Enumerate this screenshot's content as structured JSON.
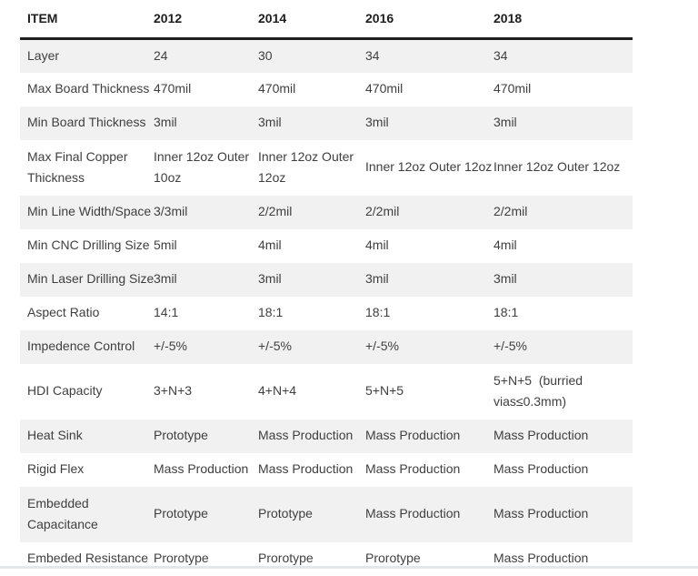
{
  "table": {
    "columns": [
      "ITEM",
      "2012",
      "2014",
      "2016",
      "2018"
    ],
    "rows": [
      {
        "label": "Layer",
        "values": [
          "24",
          "30",
          "34",
          "34"
        ]
      },
      {
        "label": "Max Board Thickness",
        "values": [
          "470mil",
          "470mil",
          "470mil",
          "470mil"
        ]
      },
      {
        "label": "Min Board Thickness",
        "values": [
          "3mil",
          "3mil",
          "3mil",
          "3mil"
        ]
      },
      {
        "label": "Max Final Copper\nThickness",
        "values": [
          "Inner 12oz Outer\n10oz",
          "Inner 12oz Outer\n12oz",
          "Inner 12oz Outer 12oz",
          "Inner 12oz Outer 12oz"
        ]
      },
      {
        "label": "Min Line Width/Space",
        "values": [
          "3/3mil",
          "2/2mil",
          "2/2mil",
          "2/2mil"
        ]
      },
      {
        "label": "Min CNC Drilling Size",
        "values": [
          "5mil",
          "4mil",
          "4mil",
          "4mil"
        ]
      },
      {
        "label": "Min Laser Drilling Size",
        "values": [
          "3mil",
          "3mil",
          "3mil",
          "3mil"
        ]
      },
      {
        "label": "Aspect Ratio",
        "values": [
          "14:1",
          "18:1",
          "18:1",
          "18:1"
        ]
      },
      {
        "label": "Impedence Control",
        "values": [
          "+/-5%",
          "+/-5%",
          "+/-5%",
          "+/-5%"
        ]
      },
      {
        "label": "HDI Capacity",
        "values": [
          "3+N+3",
          "4+N+4",
          "5+N+5",
          "5+N+5  (burried\nvias≤0.3mm)"
        ]
      },
      {
        "label": "Heat Sink",
        "values": [
          "Prototype",
          "Mass Production",
          "Mass Production",
          "Mass Production"
        ]
      },
      {
        "label": "Rigid Flex",
        "values": [
          "Mass Production",
          "Mass Production",
          "Mass Production",
          "Mass Production"
        ]
      },
      {
        "label": "Embedded\nCapacitance",
        "values": [
          "Prototype",
          "Prototype",
          "Mass Production",
          "Mass Production"
        ]
      },
      {
        "label": "Embeded Resistance",
        "values": [
          "Prorotype",
          "Prorotype",
          "Prorotype",
          "Mass Production"
        ]
      }
    ]
  },
  "colors": {
    "header_border": "#1f1f1f",
    "shaded_row": "#f1f1f1",
    "body_text": "#3f3f3f",
    "bottom_divider": "#e4e7e9"
  }
}
